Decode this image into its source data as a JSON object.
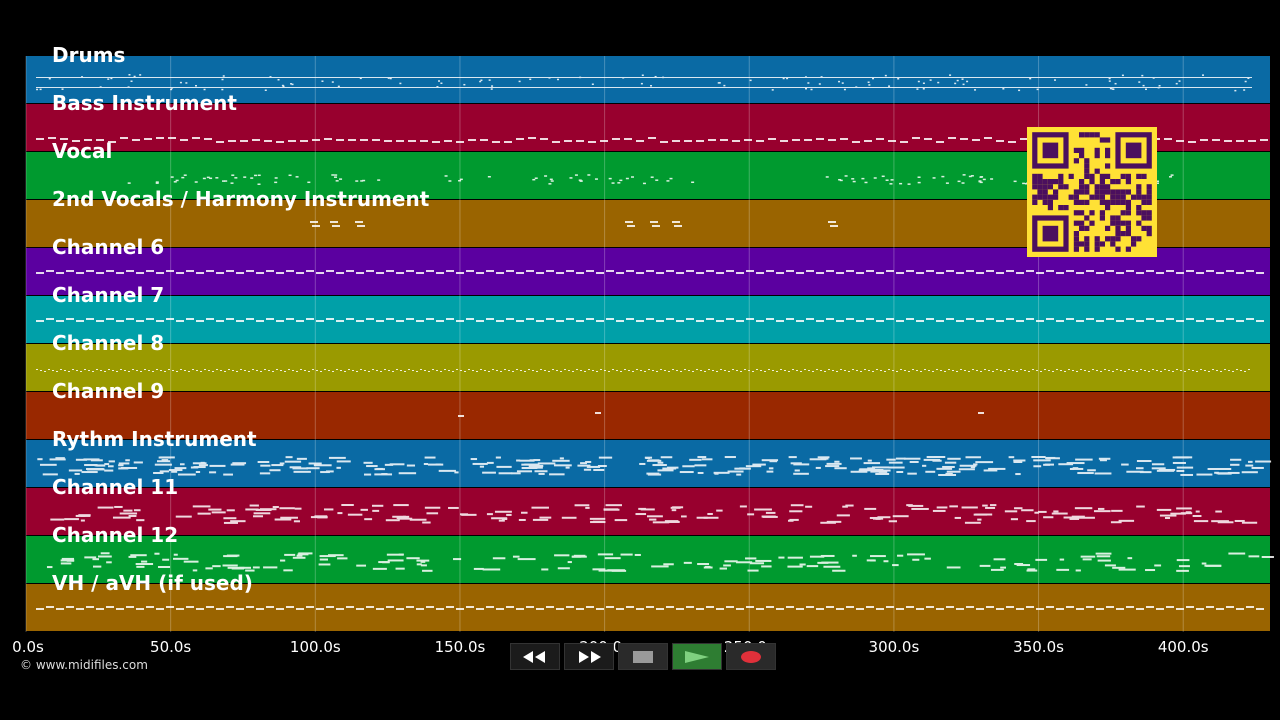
{
  "tracks": [
    {
      "name": "Drums",
      "color": "#0a6aa4",
      "pattern": "drums"
    },
    {
      "name": "Bass Instrument",
      "color": "#98002e",
      "pattern": "bass"
    },
    {
      "name": "Vocal",
      "color": "#009a2f",
      "pattern": "vocal"
    },
    {
      "name": "2nd Vocals / Harmony Instrument",
      "color": "#9a6400",
      "pattern": "harmony"
    },
    {
      "name": "Channel 6",
      "color": "#5b00a0",
      "pattern": "steady"
    },
    {
      "name": "Channel 7",
      "color": "#00a0a8",
      "pattern": "steady"
    },
    {
      "name": "Channel 8",
      "color": "#9a9a00",
      "pattern": "dotted"
    },
    {
      "name": "Channel 9",
      "color": "#992800",
      "pattern": "sparse"
    },
    {
      "name": "Rythm Instrument",
      "color": "#0a6aa4",
      "pattern": "busy"
    },
    {
      "name": "Channel 11",
      "color": "#98002e",
      "pattern": "melody"
    },
    {
      "name": "Channel 12",
      "color": "#009a2f",
      "pattern": "melody2"
    },
    {
      "name": "VH / aVH (if used)",
      "color": "#9a6400",
      "pattern": "steady"
    }
  ],
  "timeline": {
    "tick_labels": [
      "0.0s",
      "50.0s",
      "100.0s",
      "150.0s",
      "200.0s",
      "250.0s",
      "300.0s",
      "350.0s",
      "400.0s"
    ],
    "tick_values": [
      0,
      50,
      100,
      150,
      200,
      250,
      300,
      350,
      400
    ],
    "max_seconds": 430
  },
  "qr_code": {
    "fg": "#4b0f5e",
    "bg": "#ffe135"
  },
  "copyright": "© www.midifiles.com",
  "transport": {
    "buttons": [
      {
        "name": "rewind-button",
        "icon": "rewind-icon"
      },
      {
        "name": "fast-forward-button",
        "icon": "fast-forward-icon"
      },
      {
        "name": "stop-button",
        "icon": "stop-icon"
      },
      {
        "name": "play-button",
        "icon": "play-icon"
      },
      {
        "name": "record-button",
        "icon": "record-icon"
      }
    ]
  }
}
